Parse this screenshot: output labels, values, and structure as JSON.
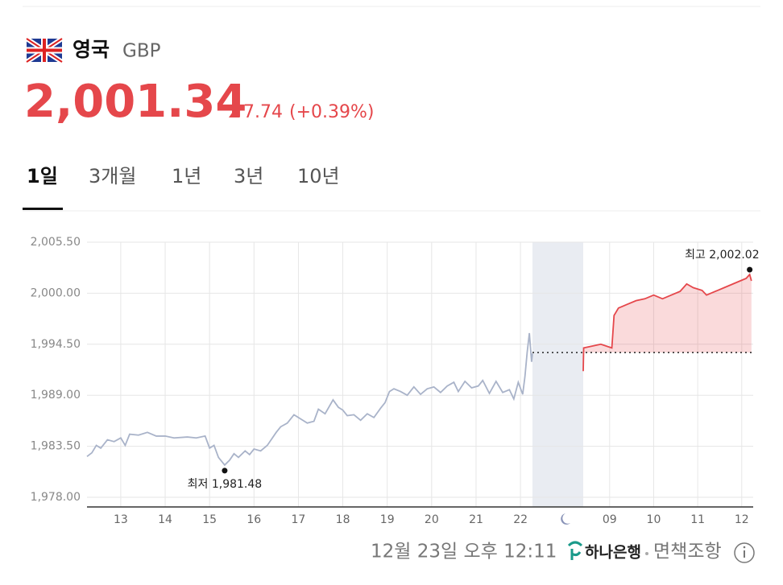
{
  "header": {
    "country": "영국",
    "code": "GBP",
    "price": "2,001.34",
    "change": "7.74",
    "change_pct": "(+0.39%)"
  },
  "tabs": [
    "1일",
    "3개월",
    "1년",
    "3년",
    "10년"
  ],
  "chart_data": {
    "type": "line",
    "grid": true,
    "ylim": [
      1978,
      2005.5
    ],
    "yticks": [
      {
        "value": 1978,
        "label": "1,978.00"
      },
      {
        "value": 1983.5,
        "label": "1,983.50"
      },
      {
        "value": 1989,
        "label": "1,989.00"
      },
      {
        "value": 1994.5,
        "label": "1,994.50"
      },
      {
        "value": 2000,
        "label": "2,000.00"
      },
      {
        "value": 2005.5,
        "label": "2,005.50"
      }
    ],
    "baseline": 1993.6,
    "panels": [
      {
        "xlim": [
          12.24,
          22.27
        ],
        "xticks": [
          13,
          14,
          15,
          16,
          17,
          18,
          19,
          20,
          21,
          22
        ],
        "series": [
          {
            "color": "#a9b3c9",
            "x": [
              12.24,
              12.35,
              12.45,
              12.55,
              12.7,
              12.85,
              13.0,
              13.1,
              13.2,
              13.4,
              13.6,
              13.8,
              14.0,
              14.2,
              14.5,
              14.7,
              14.9,
              15.0,
              15.1,
              15.2,
              15.34,
              15.45,
              15.55,
              15.65,
              15.8,
              15.9,
              16.0,
              16.15,
              16.3,
              16.5,
              16.6,
              16.75,
              16.9,
              17.0,
              17.2,
              17.35,
              17.45,
              17.6,
              17.78,
              17.9,
              18.0,
              18.1,
              18.25,
              18.4,
              18.55,
              18.7,
              18.85,
              18.95,
              19.05,
              19.15,
              19.3,
              19.45,
              19.6,
              19.75,
              19.9,
              20.05,
              20.2,
              20.35,
              20.5,
              20.6,
              20.75,
              20.9,
              21.05,
              21.15,
              21.3,
              21.45,
              21.6,
              21.75,
              21.85,
              21.95,
              22.05,
              22.1,
              22.15,
              22.2,
              22.25,
              22.27
            ],
            "values": [
              1982.4,
              1982.8,
              1983.6,
              1983.3,
              1984.2,
              1984.0,
              1984.4,
              1983.6,
              1984.8,
              1984.7,
              1985.0,
              1984.6,
              1984.6,
              1984.4,
              1984.5,
              1984.4,
              1984.6,
              1983.3,
              1983.6,
              1982.3,
              1981.48,
              1982.0,
              1982.7,
              1982.3,
              1983.0,
              1982.6,
              1983.2,
              1983.0,
              1983.6,
              1985.0,
              1985.6,
              1986.0,
              1986.9,
              1986.6,
              1986.0,
              1986.2,
              1987.5,
              1987.0,
              1988.5,
              1987.7,
              1987.4,
              1986.8,
              1986.9,
              1986.3,
              1987.0,
              1986.6,
              1987.6,
              1988.2,
              1989.4,
              1989.7,
              1989.4,
              1989.0,
              1989.9,
              1989.1,
              1989.7,
              1989.9,
              1989.3,
              1990.0,
              1990.4,
              1989.4,
              1990.5,
              1989.8,
              1990.0,
              1990.6,
              1989.2,
              1990.5,
              1989.3,
              1989.6,
              1988.6,
              1990.4,
              1989.1,
              1991.0,
              1993.6,
              1995.7,
              1992.6,
              1993.5
            ]
          }
        ],
        "annotation": {
          "label": "최저 1,981.48",
          "x": 15.34,
          "value": 1981.48
        }
      },
      {
        "xlim": [
          8.4,
          12.26
        ],
        "xticks": [
          {
            "value": 9,
            "label": "09"
          },
          {
            "value": 10,
            "label": "10"
          },
          {
            "value": 11,
            "label": "11"
          },
          {
            "value": 12,
            "label": "12"
          }
        ],
        "series": [
          {
            "color": "#e5474b",
            "x": [
              8.4,
              8.41,
              8.8,
              9.05,
              9.1,
              9.2,
              9.4,
              9.6,
              9.8,
              10.0,
              10.2,
              10.4,
              10.6,
              10.75,
              10.9,
              11.1,
              11.2,
              11.4,
              11.6,
              11.8,
              12.0,
              12.1,
              12.18,
              12.22
            ],
            "values": [
              1991.6,
              1994.1,
              1994.5,
              1994.1,
              1997.6,
              1998.4,
              1998.8,
              1999.2,
              1999.4,
              1999.8,
              1999.4,
              1999.8,
              2000.2,
              2001.0,
              2000.6,
              2000.3,
              1999.8,
              2000.2,
              2000.6,
              2001.0,
              2001.4,
              2001.6,
              2002.02,
              2001.34
            ]
          }
        ],
        "annotation": {
          "label": "최고 2,002.02",
          "x": 12.18,
          "value": 2002.02
        }
      }
    ]
  },
  "footer": {
    "timestamp": "12월 23일 오후 12:11",
    "bank": "하나은행",
    "disclaimer": "면책조항"
  }
}
